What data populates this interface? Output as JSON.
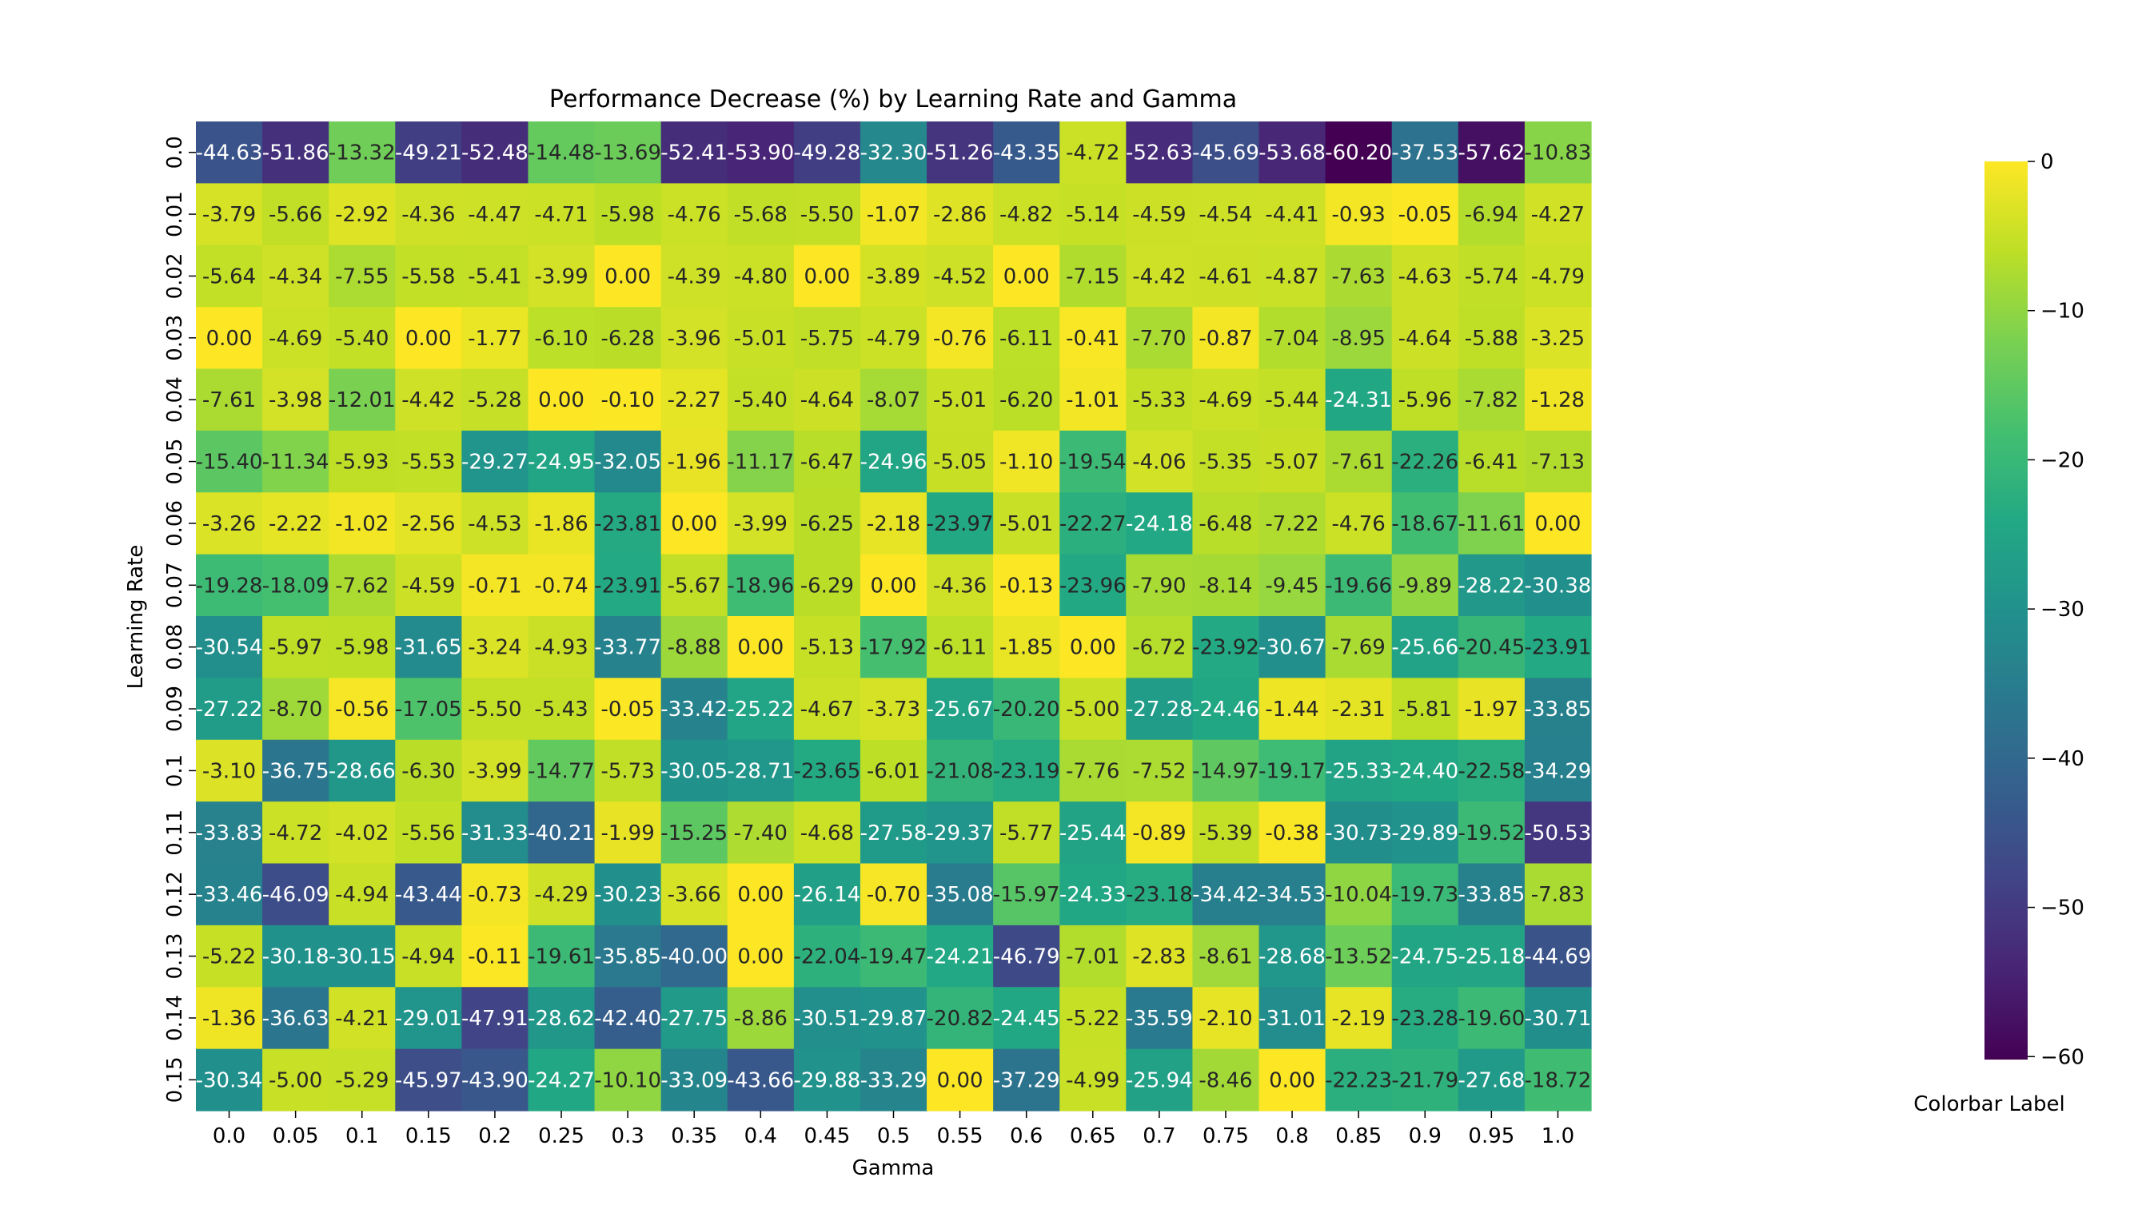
{
  "chart_data": {
    "type": "heatmap",
    "title": "Performance Decrease (%) by Learning Rate and Gamma",
    "xlabel": "Gamma",
    "ylabel": "Learning Rate",
    "x": [
      "0.0",
      "0.05",
      "0.1",
      "0.15",
      "0.2",
      "0.25",
      "0.3",
      "0.35",
      "0.4",
      "0.45",
      "0.5",
      "0.55",
      "0.6",
      "0.65",
      "0.7",
      "0.75",
      "0.8",
      "0.85",
      "0.9",
      "0.95",
      "1.0"
    ],
    "y": [
      "0.0",
      "0.01",
      "0.02",
      "0.03",
      "0.04",
      "0.05",
      "0.06",
      "0.07",
      "0.08",
      "0.09",
      "0.1",
      "0.11",
      "0.12",
      "0.13",
      "0.14",
      "0.15"
    ],
    "values": [
      [
        -44.63,
        -51.86,
        -13.32,
        -49.21,
        -52.48,
        -14.48,
        -13.69,
        -52.41,
        -53.9,
        -49.28,
        -32.3,
        -51.26,
        -43.35,
        -4.72,
        -52.63,
        -45.69,
        -53.68,
        -60.2,
        -37.53,
        -57.62,
        -10.83
      ],
      [
        -3.79,
        -5.66,
        -2.92,
        -4.36,
        -4.47,
        -4.71,
        -5.98,
        -4.76,
        -5.68,
        -5.5,
        -1.07,
        -2.86,
        -4.82,
        -5.14,
        -4.59,
        -4.54,
        -4.41,
        -0.93,
        -0.05,
        -6.94,
        -4.27
      ],
      [
        -5.64,
        -4.34,
        -7.55,
        -5.58,
        -5.41,
        -3.99,
        0.0,
        -4.39,
        -4.8,
        0.0,
        -3.89,
        -4.52,
        0.0,
        -7.15,
        -4.42,
        -4.61,
        -4.87,
        -7.63,
        -4.63,
        -5.74,
        -4.79
      ],
      [
        0.0,
        -4.69,
        -5.4,
        0.0,
        -1.77,
        -6.1,
        -6.28,
        -3.96,
        -5.01,
        -5.75,
        -4.79,
        -0.76,
        -6.11,
        -0.41,
        -7.7,
        -0.87,
        -7.04,
        -8.95,
        -4.64,
        -5.88,
        -3.25
      ],
      [
        -7.61,
        -3.98,
        -12.01,
        -4.42,
        -5.28,
        0.0,
        -0.1,
        -2.27,
        -5.4,
        -4.64,
        -8.07,
        -5.01,
        -6.2,
        -1.01,
        -5.33,
        -4.69,
        -5.44,
        -24.31,
        -5.96,
        -7.82,
        -1.28
      ],
      [
        -15.4,
        -11.34,
        -5.93,
        -5.53,
        -29.27,
        -24.95,
        -32.05,
        -1.96,
        -11.17,
        -6.47,
        -24.96,
        -5.05,
        -1.1,
        -19.54,
        -4.06,
        -5.35,
        -5.07,
        -7.61,
        -22.26,
        -6.41,
        -7.13
      ],
      [
        -3.26,
        -2.22,
        -1.02,
        -2.56,
        -4.53,
        -1.86,
        -23.81,
        0.0,
        -3.99,
        -6.25,
        -2.18,
        -23.97,
        -5.01,
        -22.27,
        -24.18,
        -6.48,
        -7.22,
        -4.76,
        -18.67,
        -11.61,
        0.0
      ],
      [
        -19.28,
        -18.09,
        -7.62,
        -4.59,
        -0.71,
        -0.74,
        -23.91,
        -5.67,
        -18.96,
        -6.29,
        0.0,
        -4.36,
        -0.13,
        -23.96,
        -7.9,
        -8.14,
        -9.45,
        -19.66,
        -9.89,
        -28.22,
        -30.38
      ],
      [
        -30.54,
        -5.97,
        -5.98,
        -31.65,
        -3.24,
        -4.93,
        -33.77,
        -8.88,
        0.0,
        -5.13,
        -17.92,
        -6.11,
        -1.85,
        0.0,
        -6.72,
        -23.92,
        -30.67,
        -7.69,
        -25.66,
        -20.45,
        -23.91
      ],
      [
        -27.22,
        -8.7,
        -0.56,
        -17.05,
        -5.5,
        -5.43,
        -0.05,
        -33.42,
        -25.22,
        -4.67,
        -3.73,
        -25.67,
        -20.2,
        -5.0,
        -27.28,
        -24.46,
        -1.44,
        -2.31,
        -5.81,
        -1.97,
        -33.85
      ],
      [
        -3.1,
        -36.75,
        -28.66,
        -6.3,
        -3.99,
        -14.77,
        -5.73,
        -30.05,
        -28.71,
        -23.65,
        -6.01,
        -21.08,
        -23.19,
        -7.76,
        -7.52,
        -14.97,
        -19.17,
        -25.33,
        -24.4,
        -22.58,
        -34.29
      ],
      [
        -33.83,
        -4.72,
        -4.02,
        -5.56,
        -31.33,
        -40.21,
        -1.99,
        -15.25,
        -7.4,
        -4.68,
        -27.58,
        -29.37,
        -5.77,
        -25.44,
        -0.89,
        -5.39,
        -0.38,
        -30.73,
        -29.89,
        -19.52,
        -50.53
      ],
      [
        -33.46,
        -46.09,
        -4.94,
        -43.44,
        -0.73,
        -4.29,
        -30.23,
        -3.66,
        0.0,
        -26.14,
        -0.7,
        -35.08,
        -15.97,
        -24.33,
        -23.18,
        -34.42,
        -34.53,
        -10.04,
        -19.73,
        -33.85,
        -7.83
      ],
      [
        -5.22,
        -30.18,
        -30.15,
        -4.94,
        -0.11,
        -19.61,
        -35.85,
        -40.0,
        0.0,
        -22.04,
        -19.47,
        -24.21,
        -46.79,
        -7.01,
        -2.83,
        -8.61,
        -28.68,
        -13.52,
        -24.75,
        -25.18,
        -44.69
      ],
      [
        -1.36,
        -36.63,
        -4.21,
        -29.01,
        -47.91,
        -28.62,
        -42.4,
        -27.75,
        -8.86,
        -30.51,
        -29.87,
        -20.82,
        -24.45,
        -5.22,
        -35.59,
        -2.1,
        -31.01,
        -2.19,
        -23.28,
        -19.6,
        -30.71
      ],
      [
        -30.34,
        -5.0,
        -5.29,
        -45.97,
        -43.9,
        -24.27,
        -10.1,
        -33.09,
        -43.66,
        -29.88,
        -33.29,
        0.0,
        -37.29,
        -4.99,
        -25.94,
        -8.46,
        0.0,
        -22.23,
        -21.79,
        -27.68,
        -18.72
      ]
    ],
    "vmin": -60.2,
    "vmax": 0,
    "colormap": "viridis",
    "colorbar_label": "Colorbar Label",
    "colorbar_ticks": [
      0,
      -10,
      -20,
      -30,
      -40,
      -50,
      -60
    ]
  }
}
